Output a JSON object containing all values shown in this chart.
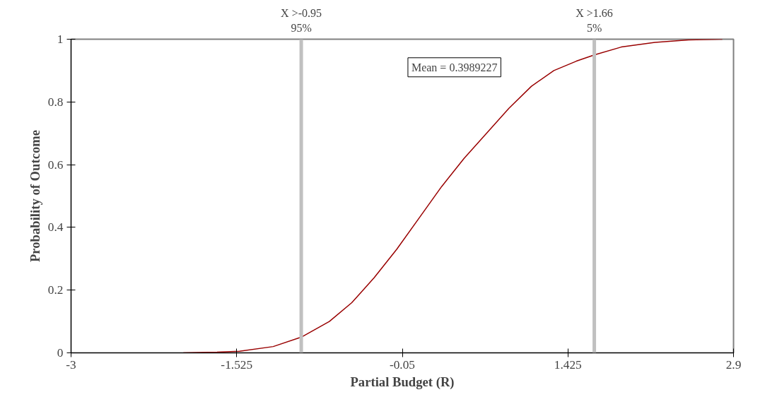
{
  "chart_data": {
    "type": "line",
    "xlabel": "Partial Budget (R)",
    "ylabel": "Probability of Outcome",
    "x": [
      -2.0,
      -1.7,
      -1.5,
      -1.2,
      -0.95,
      -0.7,
      -0.5,
      -0.3,
      -0.1,
      0.1,
      0.3,
      0.5,
      0.7,
      0.9,
      1.1,
      1.3,
      1.5,
      1.66,
      1.9,
      2.2,
      2.5,
      2.8
    ],
    "series": [
      {
        "color": "#990000",
        "values": [
          0.0,
          0.002,
          0.005,
          0.02,
          0.05,
          0.1,
          0.16,
          0.24,
          0.33,
          0.43,
          0.53,
          0.62,
          0.7,
          0.78,
          0.85,
          0.9,
          0.93,
          0.95,
          0.975,
          0.99,
          0.998,
          1.0
        ]
      }
    ],
    "xlim": [
      -3,
      2.9
    ],
    "xticks": [
      -3,
      -1.525,
      -0.05,
      1.425,
      2.9
    ],
    "ylim": [
      0,
      1
    ],
    "yticks": [
      0,
      0.2,
      0.4,
      0.6,
      0.8,
      1
    ],
    "ref_lines": [
      {
        "axis": "x",
        "value": -0.95,
        "label": "X >-0.95\n95%",
        "color": "#c0c0c0"
      },
      {
        "axis": "x",
        "value": 1.66,
        "label": "X >1.66\n5%",
        "color": "#c0c0c0"
      }
    ],
    "annotations": [
      "Mean = 0.3989227"
    ],
    "grid": false,
    "marker": "none",
    "line_style": "solid"
  }
}
